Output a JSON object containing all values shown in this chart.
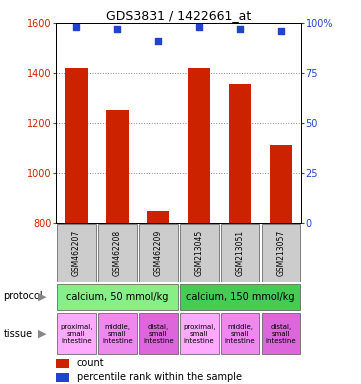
{
  "title": "GDS3831 / 1422661_at",
  "samples": [
    "GSM462207",
    "GSM462208",
    "GSM462209",
    "GSM213045",
    "GSM213051",
    "GSM213057"
  ],
  "bar_values": [
    1420,
    1250,
    845,
    1420,
    1355,
    1110
  ],
  "percentile_values": [
    98,
    97,
    91,
    98,
    97,
    96
  ],
  "ylim_left": [
    800,
    1600
  ],
  "ylim_right": [
    0,
    100
  ],
  "yticks_left": [
    800,
    1000,
    1200,
    1400,
    1600
  ],
  "yticks_right": [
    0,
    25,
    50,
    75,
    100
  ],
  "bar_color": "#cc2200",
  "dot_color": "#2244cc",
  "bar_bottom": 800,
  "protocol_groups": [
    {
      "label": "calcium, 50 mmol/kg",
      "color": "#88ee88",
      "start": 0,
      "end": 3
    },
    {
      "label": "calcium, 150 mmol/kg",
      "color": "#44cc55",
      "start": 3,
      "end": 6
    }
  ],
  "tissue_labels": [
    {
      "label": "proximal,\nsmall\nintestine",
      "color": "#ffaaff"
    },
    {
      "label": "middle,\nsmall\nintestine",
      "color": "#ee88ee"
    },
    {
      "label": "distal,\nsmall\nintestine",
      "color": "#dd66dd"
    },
    {
      "label": "proximal,\nsmall\nintestine",
      "color": "#ffaaff"
    },
    {
      "label": "middle,\nsmall\nintestine",
      "color": "#ee88ee"
    },
    {
      "label": "distal,\nsmall\nintestine",
      "color": "#dd66dd"
    }
  ],
  "gsm_box_color": "#cccccc",
  "protocol_label": "protocol",
  "tissue_label": "tissue",
  "legend_count_color": "#cc2200",
  "legend_dot_color": "#2244cc",
  "bg_color": "#ffffff",
  "grid_color": "#888888",
  "title_fontsize": 9,
  "tick_fontsize": 7,
  "label_fontsize": 7,
  "gsm_fontsize": 5.5,
  "tissue_fontsize": 5,
  "legend_fontsize": 7
}
